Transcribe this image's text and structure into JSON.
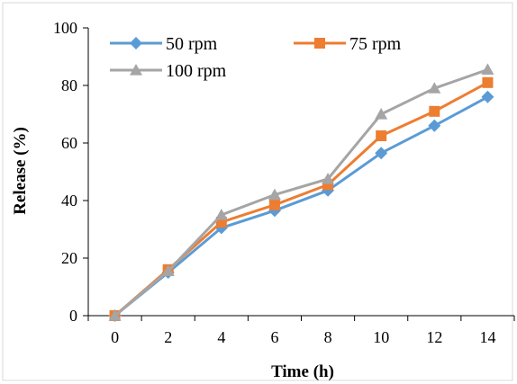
{
  "chart_data": {
    "type": "line",
    "title": "",
    "xlabel": "Time (h)",
    "ylabel": "Release (%)",
    "x": [
      0,
      2,
      4,
      6,
      8,
      10,
      12,
      14
    ],
    "xticks": [
      "0",
      "2",
      "4",
      "6",
      "8",
      "10",
      "12",
      "14"
    ],
    "yticks": [
      "0",
      "20",
      "40",
      "60",
      "80",
      "100"
    ],
    "ylim": [
      0,
      100
    ],
    "grid": false,
    "legend_position": "top-left",
    "series": [
      {
        "name": "50 rpm",
        "color": "#5b9bd5",
        "marker": "diamond",
        "values": [
          0,
          15,
          30.5,
          36.5,
          43.5,
          56.5,
          66,
          76
        ]
      },
      {
        "name": "75 rpm",
        "color": "#ed7d31",
        "marker": "square",
        "values": [
          0,
          16,
          32.5,
          38.5,
          45.5,
          62.5,
          71,
          81
        ]
      },
      {
        "name": "100 rpm",
        "color": "#a5a5a5",
        "marker": "triangle",
        "values": [
          0,
          15.5,
          35,
          42,
          47.5,
          70,
          79,
          85.5
        ]
      }
    ]
  }
}
